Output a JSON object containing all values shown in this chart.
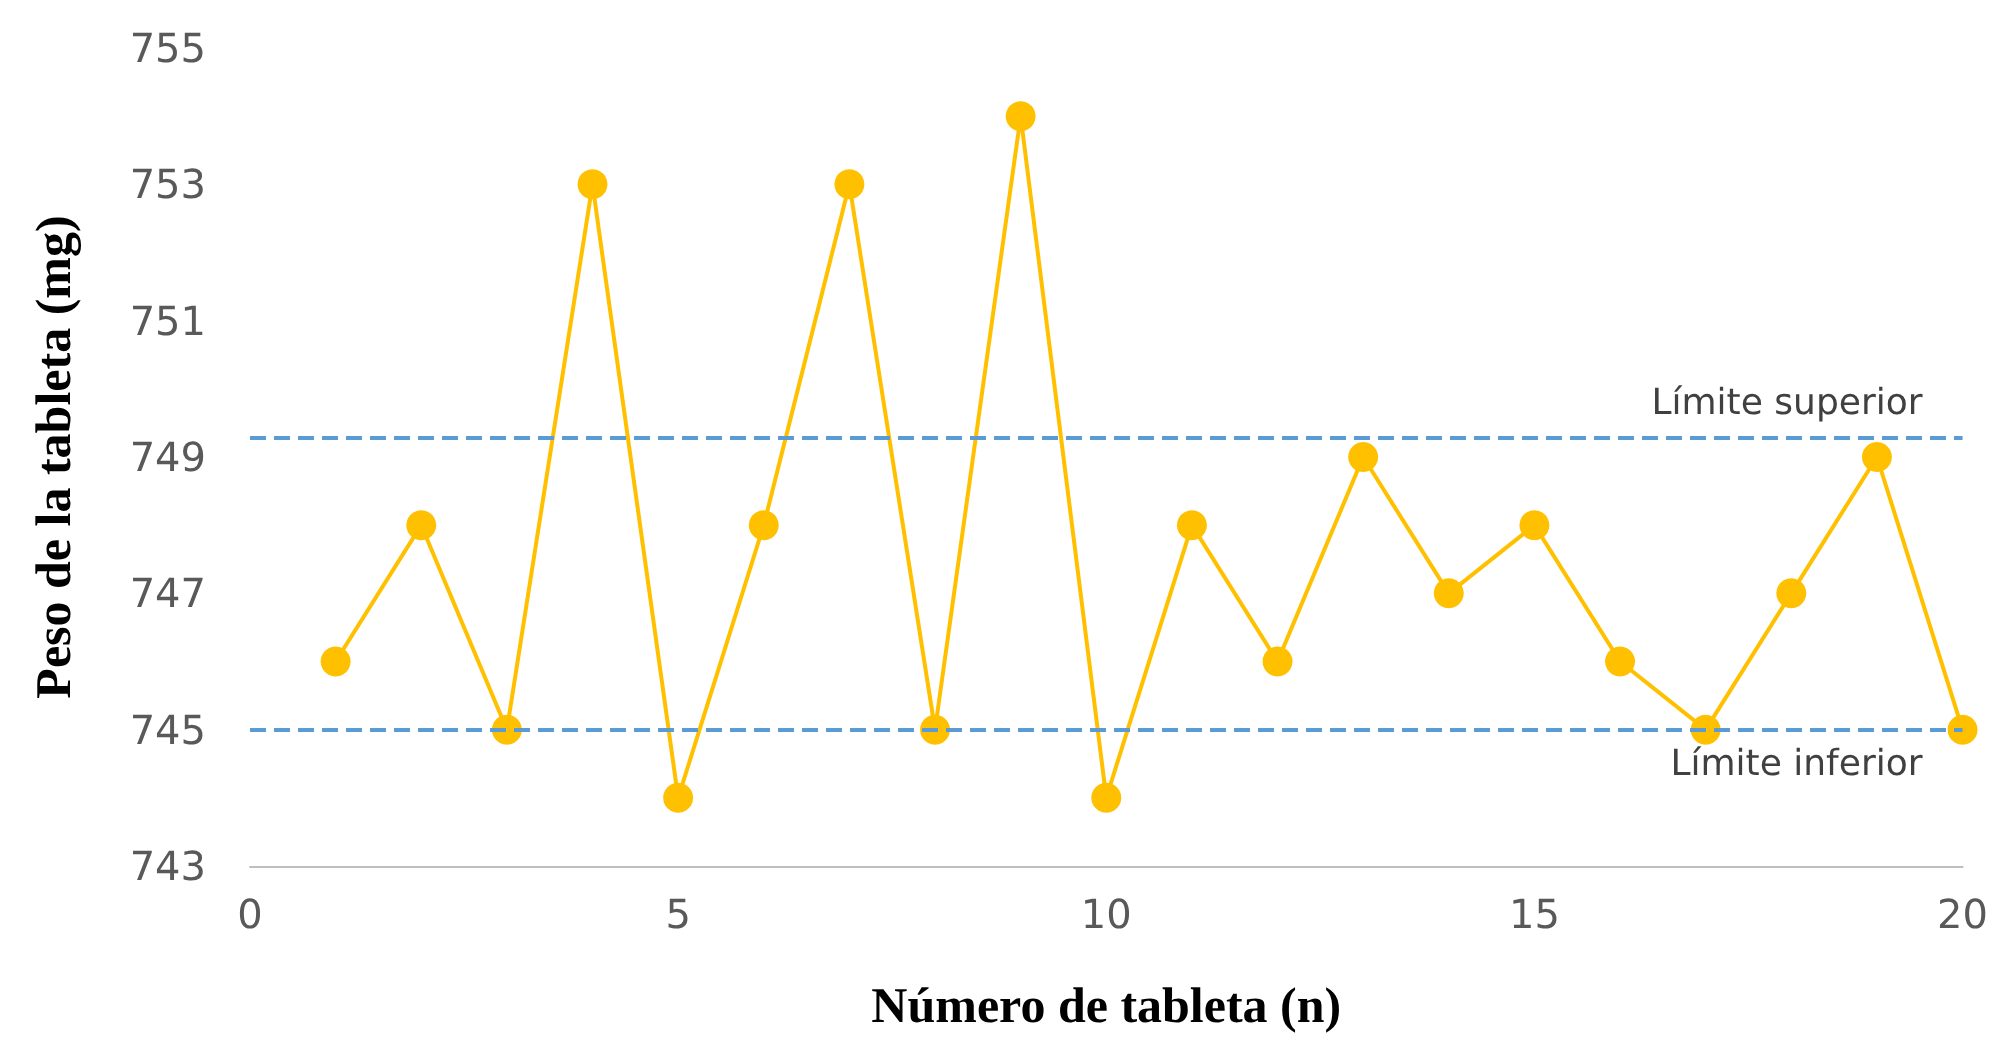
{
  "chart_data": {
    "type": "line",
    "xlabel": "Número de tableta (n)",
    "ylabel": "Peso de la tableta (mg)",
    "x": [
      1,
      2,
      3,
      4,
      5,
      6,
      7,
      8,
      9,
      10,
      11,
      12,
      13,
      14,
      15,
      16,
      17,
      18,
      19,
      20
    ],
    "series": [
      {
        "color": "#ffc000",
        "values": [
          746,
          748,
          745,
          753,
          744,
          748,
          753,
          745,
          754,
          744,
          748,
          746,
          749,
          747,
          748,
          746,
          745,
          747,
          749,
          745
        ]
      }
    ],
    "xlim": [
      0,
      20
    ],
    "xticks": [
      0,
      5,
      10,
      15,
      20
    ],
    "ylim": [
      743,
      755
    ],
    "yticks": [
      743,
      745,
      747,
      749,
      751,
      753,
      755
    ],
    "ref_lines": [
      {
        "axis": "y",
        "value": 749.3,
        "label": "Límite superior",
        "color": "#5b9bd5",
        "line_style": "dashed"
      },
      {
        "axis": "y",
        "value": 745,
        "label": "Límite inferior",
        "color": "#5b9bd5",
        "line_style": "dashed"
      }
    ],
    "marker": "circle",
    "grid": false
  }
}
